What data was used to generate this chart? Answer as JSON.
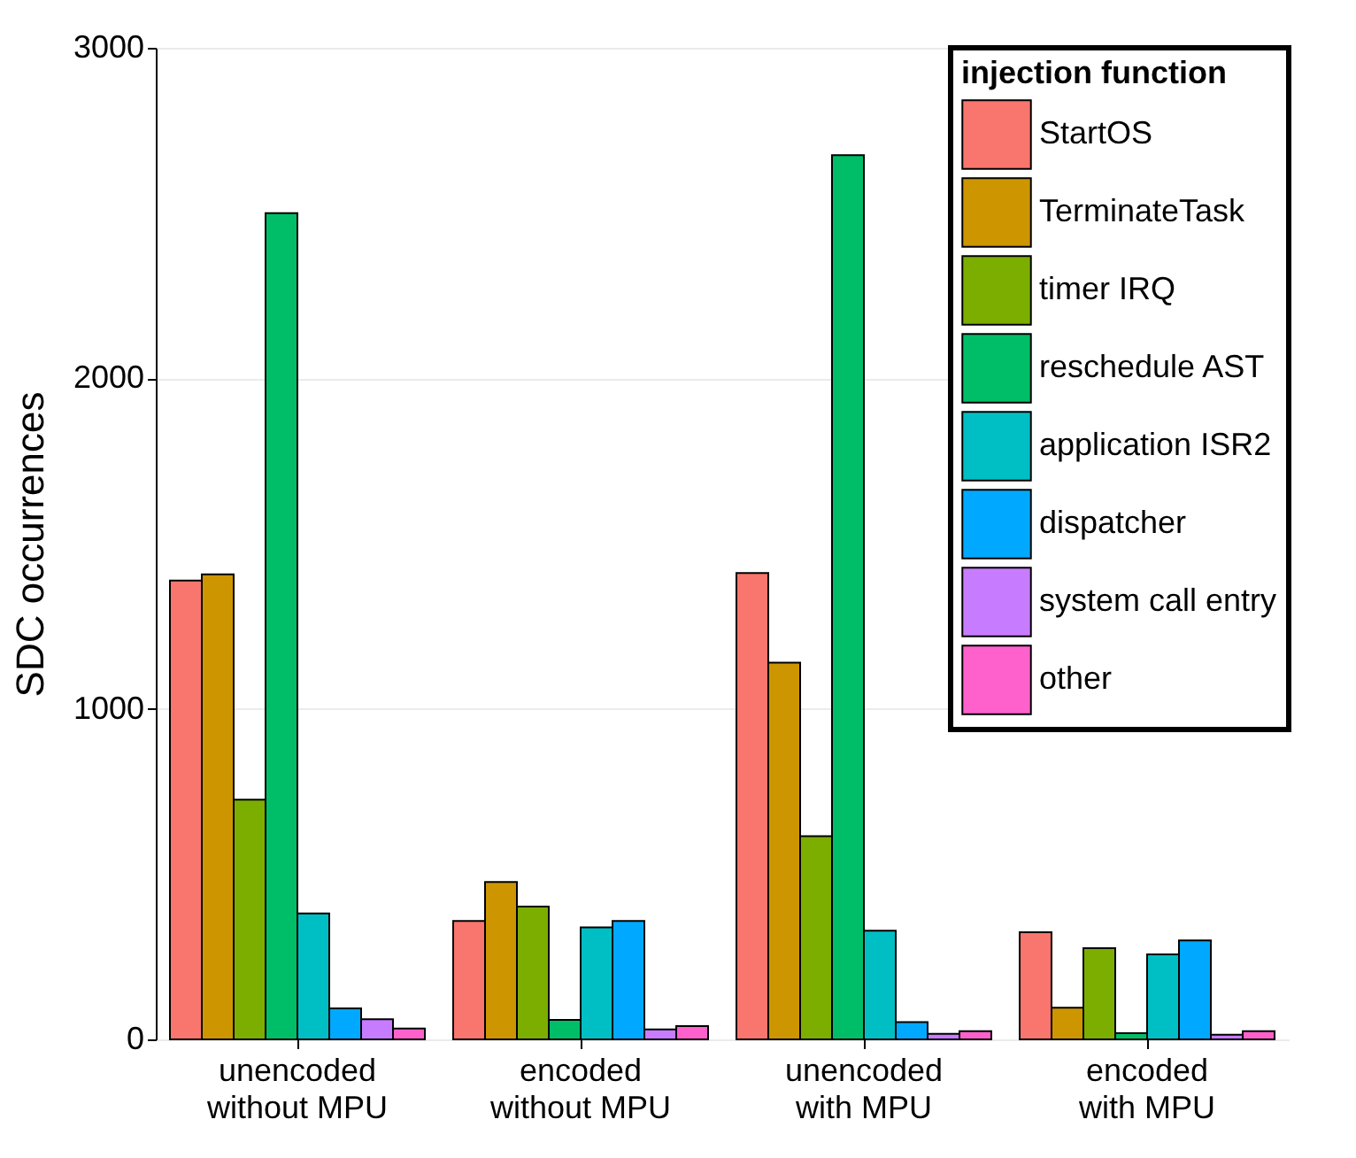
{
  "chart_data": {
    "type": "bar",
    "ylabel": "SDC occurrences",
    "legend_title": "injection function",
    "categories": [
      "unencoded\nwithout MPU",
      "encoded\nwithout MPU",
      "unencoded\nwith MPU",
      "encoded\nwith MPU"
    ],
    "series": [
      {
        "name": "StartOS",
        "color": "#f8766d",
        "values": [
          1388,
          358,
          1411,
          324
        ]
      },
      {
        "name": "TerminateTask",
        "color": "#cd9600",
        "values": [
          1407,
          476,
          1140,
          96
        ]
      },
      {
        "name": "timer IRQ",
        "color": "#7cae00",
        "values": [
          725,
          402,
          615,
          276
        ]
      },
      {
        "name": "reschedule AST",
        "color": "#00be67",
        "values": [
          2500,
          59,
          2675,
          19
        ]
      },
      {
        "name": "application ISR2",
        "color": "#00bfc4",
        "values": [
          381,
          339,
          329,
          257
        ]
      },
      {
        "name": "dispatcher",
        "color": "#00a9ff",
        "values": [
          94,
          358,
          52,
          299
        ]
      },
      {
        "name": "system call entry",
        "color": "#c77cff",
        "values": [
          61,
          30,
          17,
          14
        ]
      },
      {
        "name": "other",
        "color": "#ff61cc",
        "values": [
          33,
          40,
          25,
          25
        ]
      }
    ],
    "ylim": [
      0,
      3000
    ],
    "yticks": [
      0,
      1000,
      2000,
      3000
    ],
    "grid": "y",
    "legend": "top right"
  }
}
